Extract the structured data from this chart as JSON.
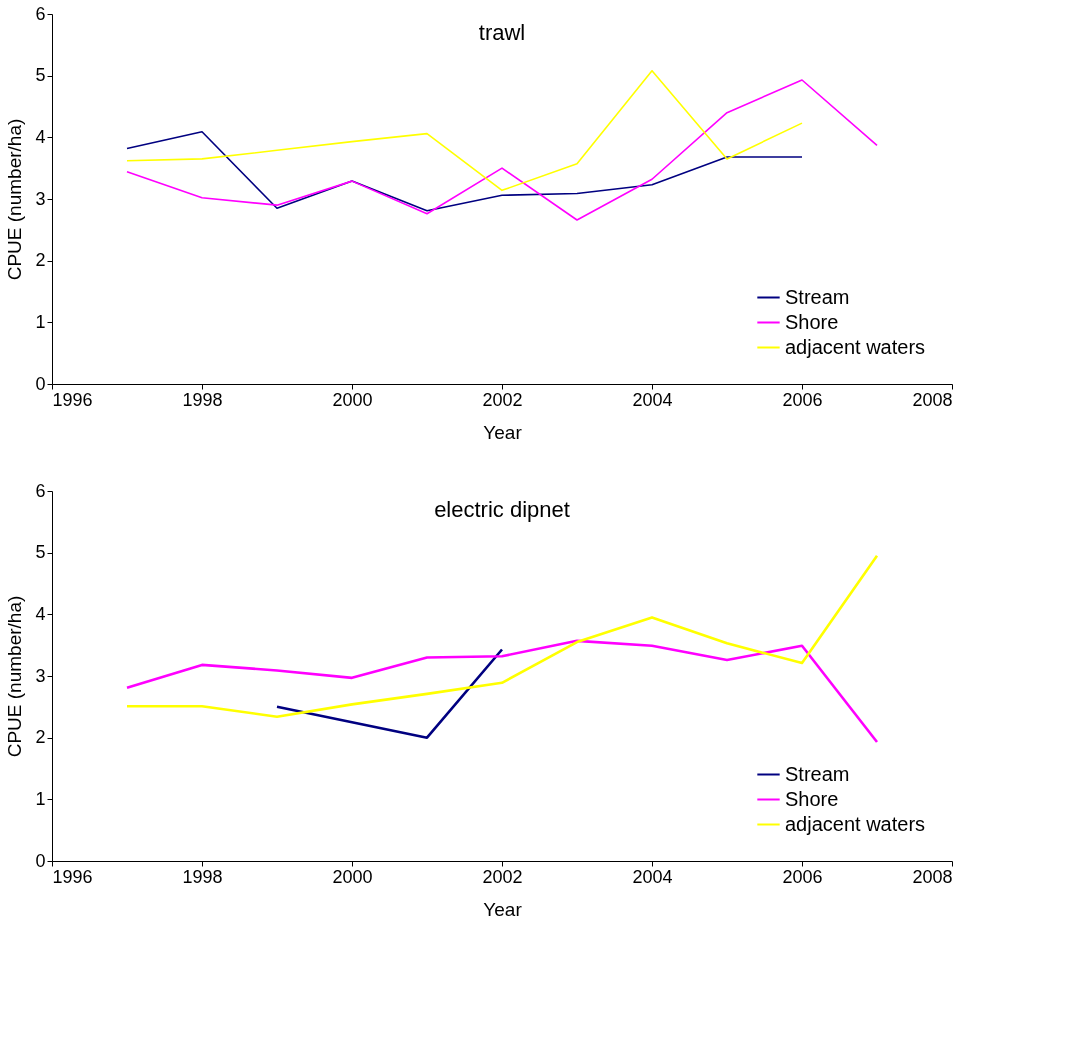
{
  "chart_data": [
    {
      "type": "line",
      "title": "trawl",
      "xlabel": "Year",
      "ylabel": "CPUE (number/ha)",
      "xlim": [
        1996,
        2008
      ],
      "xticks": [
        1996,
        1998,
        2000,
        2002,
        2004,
        2006,
        2008
      ],
      "ylim": [
        0,
        6
      ],
      "yticks": [
        0,
        1,
        2,
        3,
        4,
        5,
        6
      ],
      "grid": false,
      "legend": "bottom right",
      "marker": "none",
      "line_style": "solid",
      "series": [
        {
          "name": "Stream",
          "color": "#000080",
          "x": [
            1997,
            1998,
            1999,
            2000,
            2001,
            2002,
            2003,
            2004,
            2005,
            2006
          ],
          "values": [
            3.82,
            4.09,
            2.85,
            3.29,
            2.81,
            3.06,
            3.09,
            3.23,
            3.68,
            3.68
          ]
        },
        {
          "name": "Shore",
          "color": "#ff00ff",
          "x": [
            1997,
            1998,
            1999,
            2000,
            2001,
            2002,
            2003,
            2004,
            2005,
            2006,
            2007
          ],
          "values": [
            3.44,
            3.02,
            2.9,
            3.29,
            2.76,
            3.5,
            2.66,
            3.32,
            4.4,
            4.93,
            3.87
          ]
        },
        {
          "name": "adjacent waters",
          "color": "#ffff00",
          "x": [
            1997,
            1998,
            1999,
            2000,
            2001,
            2002,
            2003,
            2004,
            2005,
            2006
          ],
          "values": [
            3.62,
            3.65,
            3.79,
            3.93,
            4.06,
            3.14,
            3.57,
            5.08,
            3.65,
            4.23
          ]
        }
      ]
    },
    {
      "type": "line",
      "title": "electric dipnet",
      "xlabel": "Year",
      "ylabel": "CPUE (number/ha)",
      "xlim": [
        1996,
        2008
      ],
      "xticks": [
        1996,
        1998,
        2000,
        2002,
        2004,
        2006,
        2008
      ],
      "ylim": [
        0,
        6
      ],
      "yticks": [
        0,
        1,
        2,
        3,
        4,
        5,
        6
      ],
      "grid": false,
      "legend": "bottom right",
      "marker": "none",
      "line_style": "solid",
      "series": [
        {
          "name": "Stream",
          "color": "#000080",
          "x": [
            1999,
            2000,
            2001,
            2002
          ],
          "values": [
            2.5,
            2.25,
            2.0,
            3.43
          ]
        },
        {
          "name": "Shore",
          "color": "#ff00ff",
          "x": [
            1997,
            1998,
            1999,
            2000,
            2001,
            2002,
            2003,
            2004,
            2005,
            2006,
            2007
          ],
          "values": [
            2.81,
            3.18,
            3.09,
            2.97,
            3.3,
            3.32,
            3.57,
            3.49,
            3.26,
            3.49,
            1.93
          ]
        },
        {
          "name": "adjacent waters",
          "color": "#ffff00",
          "x": [
            1997,
            1998,
            1999,
            2000,
            2001,
            2002,
            2003,
            2004,
            2005,
            2006,
            2007
          ],
          "values": [
            2.51,
            2.51,
            2.34,
            2.54,
            2.71,
            2.89,
            3.55,
            3.95,
            3.53,
            3.21,
            4.95
          ]
        }
      ]
    }
  ]
}
